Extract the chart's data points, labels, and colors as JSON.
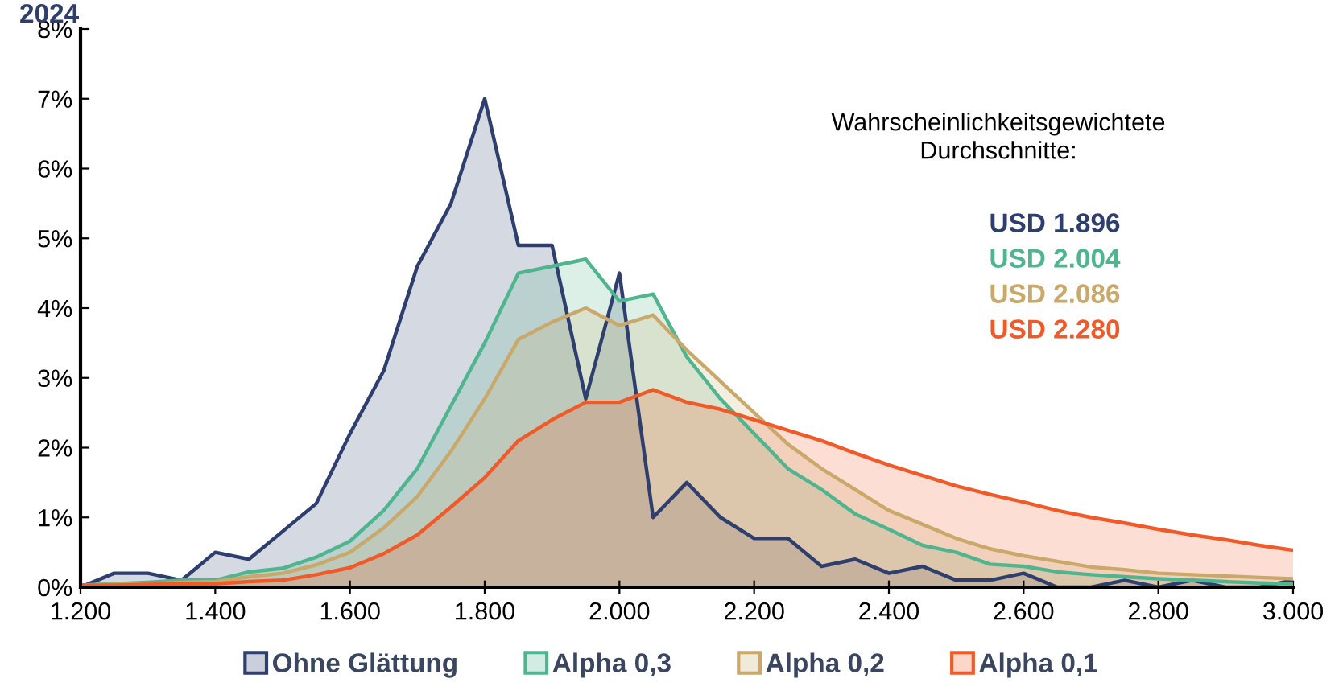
{
  "chart_data": {
    "type": "area",
    "title": "2024",
    "x": [
      1200,
      1250,
      1300,
      1350,
      1400,
      1450,
      1500,
      1550,
      1600,
      1650,
      1700,
      1750,
      1800,
      1850,
      1900,
      1950,
      2000,
      2050,
      2100,
      2150,
      2200,
      2250,
      2300,
      2350,
      2400,
      2450,
      2500,
      2550,
      2600,
      2650,
      2700,
      2750,
      2800,
      2850,
      2900,
      2950,
      3000
    ],
    "series": [
      {
        "name": "Ohne Glättung",
        "color": "#2e3f6e",
        "values": [
          0,
          0.2,
          0.2,
          0.1,
          0.5,
          0.4,
          0.8,
          1.2,
          2.2,
          3.1,
          4.6,
          5.5,
          7.0,
          4.9,
          4.9,
          2.7,
          4.5,
          1.0,
          1.5,
          1.0,
          0.7,
          0.7,
          0.3,
          0.4,
          0.2,
          0.3,
          0.1,
          0.1,
          0.2,
          0.0,
          0.0,
          0.1,
          0.0,
          0.1,
          0.0,
          0.0,
          0.1
        ]
      },
      {
        "name": "Alpha 0,3",
        "color": "#4fb58e",
        "values": [
          0.03,
          0.05,
          0.07,
          0.1,
          0.1,
          0.22,
          0.27,
          0.43,
          0.66,
          1.1,
          1.7,
          2.6,
          3.5,
          4.5,
          4.6,
          4.7,
          4.1,
          4.2,
          3.3,
          2.7,
          2.2,
          1.7,
          1.4,
          1.05,
          0.83,
          0.6,
          0.5,
          0.33,
          0.3,
          0.22,
          0.18,
          0.15,
          0.12,
          0.1,
          0.08,
          0.06,
          0.05
        ]
      },
      {
        "name": "Alpha 0,2",
        "color": "#c9a86a",
        "values": [
          0.03,
          0.04,
          0.05,
          0.07,
          0.08,
          0.15,
          0.2,
          0.32,
          0.5,
          0.85,
          1.3,
          1.95,
          2.7,
          3.55,
          3.8,
          4.0,
          3.75,
          3.9,
          3.4,
          2.95,
          2.5,
          2.05,
          1.7,
          1.4,
          1.1,
          0.9,
          0.7,
          0.55,
          0.45,
          0.37,
          0.29,
          0.25,
          0.2,
          0.18,
          0.16,
          0.14,
          0.12
        ]
      },
      {
        "name": "Alpha 0,1",
        "color": "#f05a28",
        "values": [
          0.03,
          0.03,
          0.04,
          0.05,
          0.05,
          0.08,
          0.1,
          0.18,
          0.28,
          0.48,
          0.75,
          1.15,
          1.57,
          2.1,
          2.4,
          2.65,
          2.65,
          2.83,
          2.65,
          2.55,
          2.4,
          2.25,
          2.1,
          1.92,
          1.75,
          1.6,
          1.45,
          1.33,
          1.22,
          1.1,
          1.0,
          0.92,
          0.83,
          0.75,
          0.68,
          0.6,
          0.53
        ]
      }
    ],
    "xlim": [
      1200,
      3000
    ],
    "xticks": [
      {
        "value": 1200,
        "label": "1.200"
      },
      {
        "value": 1400,
        "label": "1.400"
      },
      {
        "value": 1600,
        "label": "1.600"
      },
      {
        "value": 1800,
        "label": "1.800"
      },
      {
        "value": 2000,
        "label": "2.000"
      },
      {
        "value": 2200,
        "label": "2.200"
      },
      {
        "value": 2400,
        "label": "2.400"
      },
      {
        "value": 2600,
        "label": "2.600"
      },
      {
        "value": 2800,
        "label": "2.800"
      },
      {
        "value": 3000,
        "label": "3.000"
      }
    ],
    "ylim": [
      0,
      8
    ],
    "yticks": [
      {
        "value": 0,
        "label": "0%"
      },
      {
        "value": 1,
        "label": "1%"
      },
      {
        "value": 2,
        "label": "2%"
      },
      {
        "value": 3,
        "label": "3%"
      },
      {
        "value": 4,
        "label": "4%"
      },
      {
        "value": 5,
        "label": "5%"
      },
      {
        "value": 6,
        "label": "6%"
      },
      {
        "value": 7,
        "label": "7%"
      },
      {
        "value": 8,
        "label": "8%"
      }
    ],
    "annotations": [
      "Wahrscheinlichkeitsgewichtete\nDurchschnitte:",
      "USD 1.896",
      "USD 2.004",
      "USD 2.086",
      "USD 2.280"
    ],
    "grid": false,
    "legend": "bottom",
    "marker": "none"
  }
}
